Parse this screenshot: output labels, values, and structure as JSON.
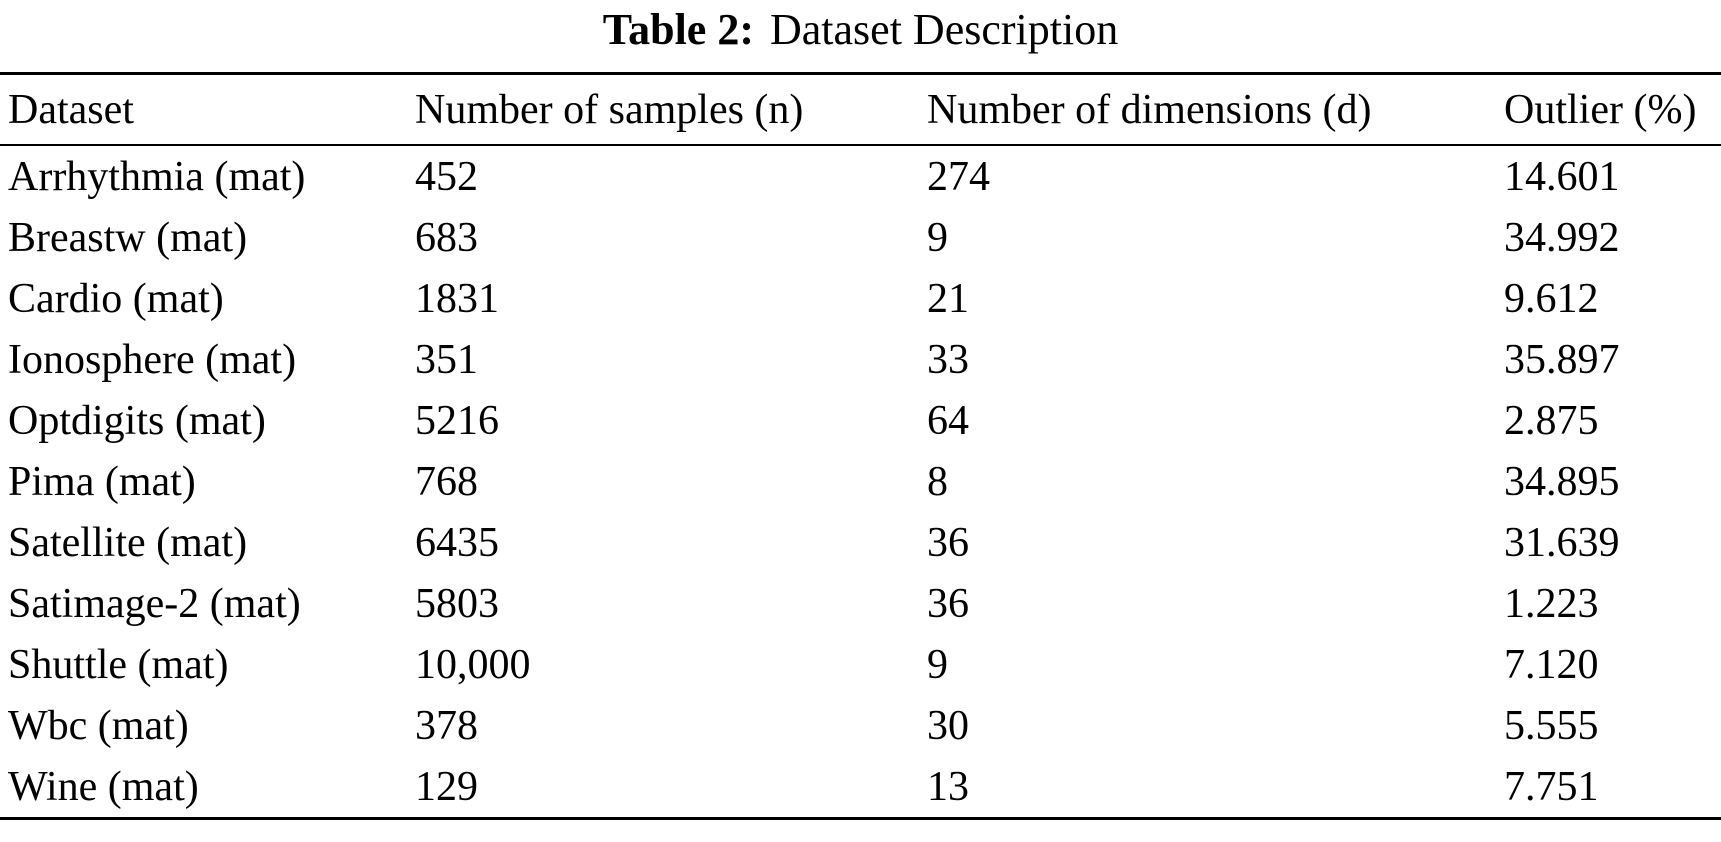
{
  "caption": {
    "label": "Table 2:",
    "text": "Dataset Description"
  },
  "table": {
    "columns": [
      "Dataset",
      "Number of samples (n)",
      "Number of dimensions (d)",
      "Outlier (%)"
    ],
    "rows": [
      [
        "Arrhythmia (mat)",
        "452",
        "274",
        "14.601"
      ],
      [
        "Breastw (mat)",
        "683",
        "9",
        "34.992"
      ],
      [
        "Cardio (mat)",
        "1831",
        "21",
        "9.612"
      ],
      [
        "Ionosphere (mat)",
        "351",
        "33",
        "35.897"
      ],
      [
        "Optdigits (mat)",
        "5216",
        "64",
        "2.875"
      ],
      [
        "Pima (mat)",
        "768",
        "8",
        "34.895"
      ],
      [
        "Satellite (mat)",
        "6435",
        "36",
        "31.639"
      ],
      [
        "Satimage-2 (mat)",
        "5803",
        "36",
        "1.223"
      ],
      [
        "Shuttle (mat)",
        "10,000",
        "9",
        "7.120"
      ],
      [
        "Wbc (mat)",
        "378",
        "30",
        "5.555"
      ],
      [
        "Wine (mat)",
        "129",
        "13",
        "7.751"
      ]
    ]
  },
  "colors": {
    "text": "#000000",
    "background": "#ffffff",
    "rule": "#000000"
  }
}
